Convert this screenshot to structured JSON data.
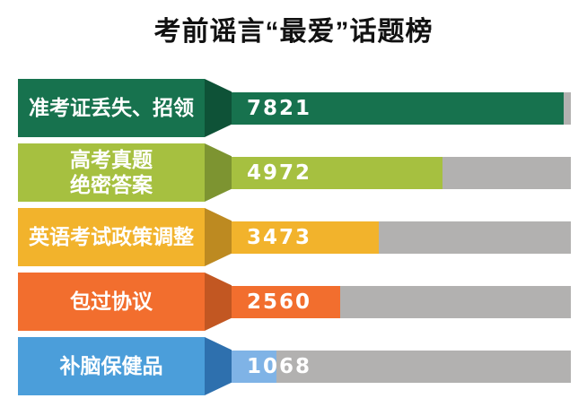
{
  "title": "考前谣言“最爱”话题榜",
  "colors": {
    "background": "#ffffff",
    "title_text": "#111111",
    "track": "#b2b1b0",
    "label_text": "#ffffff",
    "value_text": "#ffffff"
  },
  "chart_data": {
    "type": "bar",
    "orientation": "horizontal",
    "title": "考前谣言“最爱”话题榜",
    "xlabel": "",
    "ylabel": "",
    "xlim": [
      0,
      8000
    ],
    "grid": false,
    "legend": false,
    "categories": [
      "准考证丢失、招领",
      "高考真题绝密答案",
      "英语考试政策调整",
      "包过协议",
      "补脑保健品"
    ],
    "values": [
      7821,
      4972,
      3473,
      2560,
      1068
    ],
    "rows": [
      {
        "category": "准考证丢失、招领",
        "label_line1": "准考证丢失、招领",
        "label_line2": "",
        "value": 7821,
        "label_color": "#17724e",
        "arrow_color": "#0e5237",
        "bar_color": "#17724e"
      },
      {
        "category": "高考真题绝密答案",
        "label_line1": "高考真题",
        "label_line2": "绝密答案",
        "value": 4972,
        "label_color": "#a6c040",
        "arrow_color": "#7d9431",
        "bar_color": "#a6c040"
      },
      {
        "category": "英语考试政策调整",
        "label_line1": "英语考试政策调整",
        "label_line2": "",
        "value": 3473,
        "label_color": "#f2b32c",
        "arrow_color": "#bd8a21",
        "bar_color": "#f2b32c"
      },
      {
        "category": "包过协议",
        "label_line1": "包过协议",
        "label_line2": "",
        "value": 2560,
        "label_color": "#f26e2e",
        "arrow_color": "#c25722",
        "bar_color": "#f26e2e"
      },
      {
        "category": "补脑保健品",
        "label_line1": "补脑保健品",
        "label_line2": "",
        "value": 1068,
        "label_color": "#4b9eda",
        "arrow_color": "#2e70ae",
        "bar_color": "#7fb3e6"
      }
    ]
  }
}
